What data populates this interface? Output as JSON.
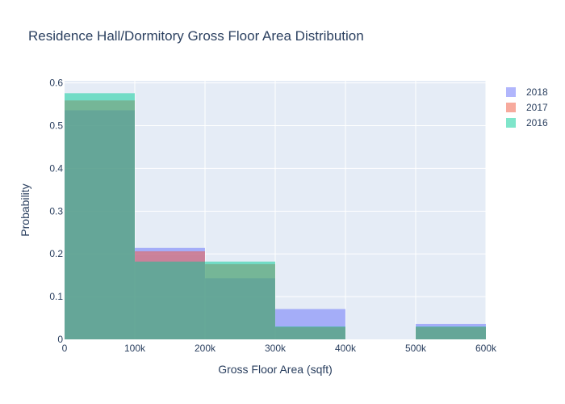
{
  "chart_data": {
    "type": "bar",
    "subtype": "overlaid-histogram",
    "title": "Residence Hall/Dormitory Gross Floor Area Distribution",
    "xlabel": "Gross Floor Area (sqft)",
    "ylabel": "Probability",
    "xlim": [
      0,
      600000
    ],
    "ylim": [
      0,
      0.605
    ],
    "x_ticks": [
      0,
      100000,
      200000,
      300000,
      400000,
      500000,
      600000
    ],
    "x_tick_labels": [
      "0",
      "100k",
      "200k",
      "300k",
      "400k",
      "500k",
      "600k"
    ],
    "y_ticks": [
      0,
      0.1,
      0.2,
      0.3,
      0.4,
      0.5,
      0.6
    ],
    "y_tick_labels": [
      "0",
      "0.1",
      "0.2",
      "0.3",
      "0.4",
      "0.5",
      "0.6"
    ],
    "bins": [
      [
        0,
        100000
      ],
      [
        100000,
        200000
      ],
      [
        200000,
        300000
      ],
      [
        300000,
        400000
      ],
      [
        400000,
        500000
      ],
      [
        500000,
        600000
      ]
    ],
    "grid": true,
    "legend_position": "top-right",
    "series": [
      {
        "name": "2018",
        "color": "#636efa",
        "values": [
          0.536,
          0.214,
          0.143,
          0.071,
          0,
          0.036
        ]
      },
      {
        "name": "2017",
        "color": "#ef553b",
        "values": [
          0.559,
          0.206,
          0.176,
          0.029,
          0,
          0.029
        ]
      },
      {
        "name": "2016",
        "color": "#00cc96",
        "values": [
          0.576,
          0.182,
          0.182,
          0.03,
          0,
          0.03
        ]
      }
    ]
  }
}
